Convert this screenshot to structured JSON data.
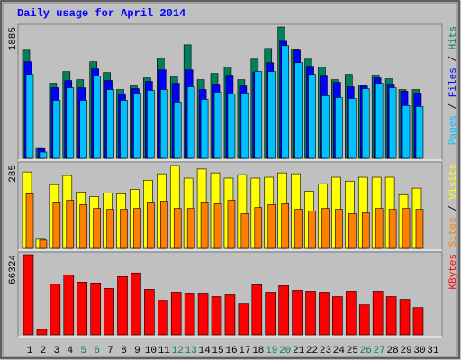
{
  "chart_data": [
    {
      "type": "bar",
      "title": "Daily usage for April 2014",
      "ylim": [
        0,
        1885
      ],
      "yticks": [
        1885
      ],
      "legend_separator": " / ",
      "series": [
        {
          "name": "Hits",
          "color": "#00805c",
          "values": [
            1552,
            154,
            1077,
            1244,
            1128,
            1385,
            1231,
            987,
            1039,
            1154,
            1436,
            1167,
            1628,
            1128,
            1218,
            1308,
            1128,
            1423,
            1577,
            1885,
            1564,
            1423,
            1308,
            1128,
            1205,
            1051,
            1193,
            1141,
            987,
            987,
            null
          ]
        },
        {
          "name": "Files",
          "color": "#0000ff",
          "values": [
            1385,
            141,
            1013,
            1116,
            1013,
            1282,
            1116,
            923,
            1000,
            1103,
            1269,
            1077,
            1269,
            987,
            1064,
            1193,
            1039,
            1231,
            1372,
            1680,
            1552,
            1321,
            1193,
            1090,
            1026,
            1039,
            1154,
            1064,
            962,
            936,
            null
          ]
        },
        {
          "name": "Pages",
          "color": "#00c0ff",
          "values": [
            1205,
            90,
            833,
            1013,
            833,
            1180,
            987,
            833,
            936,
            975,
            987,
            808,
            1026,
            846,
            949,
            923,
            936,
            1244,
            1244,
            1616,
            1372,
            1205,
            898,
            872,
            859,
            1000,
            1077,
            1013,
            757,
            744,
            null
          ]
        }
      ]
    },
    {
      "type": "bar",
      "ylim": [
        0,
        285
      ],
      "yticks": [
        285
      ],
      "legend_separator": " / ",
      "series": [
        {
          "name": "Visits",
          "color": "#ffff00",
          "values": [
            260,
            31,
            217,
            248,
            192,
            176,
            189,
            186,
            201,
            232,
            254,
            282,
            239,
            270,
            257,
            239,
            251,
            239,
            242,
            257,
            254,
            195,
            220,
            242,
            229,
            242,
            242,
            242,
            183,
            205,
            null
          ]
        },
        {
          "name": "Sites",
          "color": "#ff8000",
          "values": [
            186,
            28,
            155,
            164,
            149,
            136,
            133,
            133,
            136,
            155,
            161,
            136,
            136,
            155,
            152,
            164,
            118,
            139,
            149,
            152,
            133,
            127,
            136,
            133,
            118,
            121,
            136,
            133,
            136,
            133,
            null
          ]
        }
      ]
    },
    {
      "type": "bar",
      "ylim": [
        0,
        66324
      ],
      "yticks": [
        66324
      ],
      "categories": [
        "1",
        "2",
        "3",
        "4",
        "5",
        "6",
        "7",
        "8",
        "9",
        "10",
        "11",
        "12",
        "13",
        "14",
        "15",
        "16",
        "17",
        "18",
        "19",
        "20",
        "21",
        "22",
        "23",
        "24",
        "25",
        "26",
        "27",
        "28",
        "29",
        "30",
        "31"
      ],
      "category_colors": [
        "#000000",
        "#000000",
        "#000000",
        "#000000",
        "#00805c",
        "#00805c",
        "#000000",
        "#000000",
        "#000000",
        "#000000",
        "#000000",
        "#00805c",
        "#00805c",
        "#000000",
        "#000000",
        "#000000",
        "#000000",
        "#000000",
        "#00805c",
        "#00805c",
        "#000000",
        "#000000",
        "#000000",
        "#000000",
        "#000000",
        "#00805c",
        "#00805c",
        "#000000",
        "#000000",
        "#000000",
        "#000000"
      ],
      "series": [
        {
          "name": "KBytes",
          "color": "#ff0000",
          "values": [
            66324,
            4522,
            42209,
            49743,
            43718,
            42964,
            38440,
            48238,
            51253,
            37686,
            28641,
            35425,
            33917,
            33917,
            31656,
            33163,
            25626,
            41454,
            35425,
            40700,
            36932,
            36178,
            35425,
            31656,
            36178,
            24872,
            36178,
            31656,
            29395,
            22611,
            null
          ]
        }
      ]
    }
  ]
}
